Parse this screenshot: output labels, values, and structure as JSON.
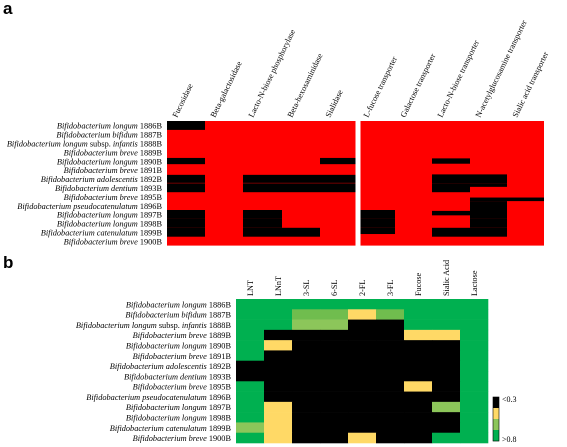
{
  "panels": {
    "a_letter": "a",
    "b_letter": "b"
  },
  "chart_data": [
    {
      "type": "heatmap",
      "panel": "a",
      "rows": [
        {
          "genus": "Bifidobacterium",
          "species": "longum",
          "subsp": "",
          "strain": "1886B"
        },
        {
          "genus": "Bifidobacterium",
          "species": "bifidum",
          "subsp": "",
          "strain": "1887B"
        },
        {
          "genus": "Bifidobacterium",
          "species": "longum",
          "subsp": "infantis",
          "strain": "1888B"
        },
        {
          "genus": "Bifidobacterium",
          "species": "breve",
          "subsp": "",
          "strain": "1889B"
        },
        {
          "genus": "Bifidobacterium",
          "species": "longum",
          "subsp": "",
          "strain": "1890B"
        },
        {
          "genus": "Bifidobacterium",
          "species": "breve",
          "subsp": "",
          "strain": "1891B"
        },
        {
          "genus": "Bifidobacterium",
          "species": "adolescentis",
          "subsp": "",
          "strain": "1892B"
        },
        {
          "genus": "Bifidobacterium",
          "species": "dentium",
          "subsp": "",
          "strain": "1893B"
        },
        {
          "genus": "Bifidobacterium",
          "species": "breve",
          "subsp": "",
          "strain": "1895B"
        },
        {
          "genus": "Bifidobacterium",
          "species": "pseudocatenulatum",
          "subsp": "",
          "strain": "1896B"
        },
        {
          "genus": "Bifidobacterium",
          "species": "longum",
          "subsp": "",
          "strain": "1897B"
        },
        {
          "genus": "Bifidobacterium",
          "species": "longum",
          "subsp": "",
          "strain": "1898B"
        },
        {
          "genus": "Bifidobacterium",
          "species": "catenulatum",
          "subsp": "",
          "strain": "1899B"
        },
        {
          "genus": "Bifidobacterium",
          "species": "breve",
          "subsp": "",
          "strain": "1900B"
        }
      ],
      "columns": [
        "Fucosidase",
        "Beta-galactosidase",
        "Lacto-N-biose phosphorylase",
        "Beta-hexosaminidase",
        "Sialidase",
        "L-fucose transporter",
        "Galactose transporter",
        "Lacto-N-biose transporter",
        "N-acetylglucosamine transporter",
        "Sialic acid transporter"
      ],
      "column_group_break_after": 5,
      "colors": {
        "present": "#ff0000",
        "absent": "#000000"
      },
      "segments": [
        [
          [
            0,
            1,
            0.0,
            1.0
          ]
        ],
        [],
        [],
        [],
        [
          [
            0,
            1,
            0.15,
            0.85
          ],
          [
            4,
            5,
            0.15,
            0.85
          ],
          [
            7,
            8,
            0.2,
            0.8
          ]
        ],
        [],
        [
          [
            0,
            1,
            0.05,
            0.95
          ],
          [
            2,
            5,
            0.05,
            0.95
          ],
          [
            7,
            9,
            0.0,
            1.0
          ]
        ],
        [
          [
            0,
            1,
            0.0,
            1.0
          ],
          [
            2,
            5,
            0.0,
            1.0
          ],
          [
            7,
            8,
            0.0,
            1.0
          ],
          [
            8,
            9,
            0.0,
            0.4
          ]
        ],
        [
          [
            8,
            10,
            0.6,
            1.0
          ]
        ],
        [
          [
            8,
            9,
            0.0,
            1.0
          ]
        ],
        [
          [
            0,
            1,
            0.0,
            1.0
          ],
          [
            2,
            3,
            0.0,
            1.0
          ],
          [
            5,
            6,
            0.0,
            1.0
          ],
          [
            7,
            8,
            0.1,
            0.6
          ],
          [
            8,
            9,
            0.0,
            1.0
          ]
        ],
        [
          [
            0,
            1,
            0.0,
            1.0
          ],
          [
            2,
            3,
            0.0,
            1.0
          ],
          [
            5,
            6,
            0.0,
            1.0
          ],
          [
            8,
            9,
            0.0,
            1.0
          ]
        ],
        [
          [
            0,
            1,
            0.0,
            1.0
          ],
          [
            2,
            4,
            0.0,
            1.0
          ],
          [
            5,
            6,
            0.0,
            0.7
          ],
          [
            7,
            9,
            0.0,
            1.0
          ]
        ],
        []
      ]
    },
    {
      "type": "heatmap",
      "panel": "b",
      "rows": [
        {
          "genus": "Bifidobacterium",
          "species": "longum",
          "subsp": "",
          "strain": "1886B"
        },
        {
          "genus": "Bifidobacterium",
          "species": "bifidum",
          "subsp": "",
          "strain": "1887B"
        },
        {
          "genus": "Bifidobacterium",
          "species": "longum",
          "subsp": "infantis",
          "strain": "1888B"
        },
        {
          "genus": "Bifidobacterium",
          "species": "breve",
          "subsp": "",
          "strain": "1889B"
        },
        {
          "genus": "Bifidobacterium",
          "species": "longum",
          "subsp": "",
          "strain": "1890B"
        },
        {
          "genus": "Bifidobacterium",
          "species": "breve",
          "subsp": "",
          "strain": "1891B"
        },
        {
          "genus": "Bifidobacterium",
          "species": "adolescentis",
          "subsp": "",
          "strain": "1892B"
        },
        {
          "genus": "Bifidobacterium",
          "species": "dentium",
          "subsp": "",
          "strain": "1893B"
        },
        {
          "genus": "Bifidobacterium",
          "species": "breve",
          "subsp": "",
          "strain": "1895B"
        },
        {
          "genus": "Bifidobacterium",
          "species": "pseudocatenulatum",
          "subsp": "",
          "strain": "1896B"
        },
        {
          "genus": "Bifidobacterium",
          "species": "longum",
          "subsp": "",
          "strain": "1897B"
        },
        {
          "genus": "Bifidobacterium",
          "species": "longum",
          "subsp": "",
          "strain": "1898B"
        },
        {
          "genus": "Bifidobacterium",
          "species": "catenulatum",
          "subsp": "",
          "strain": "1899B"
        },
        {
          "genus": "Bifidobacterium",
          "species": "breve",
          "subsp": "",
          "strain": "1900B"
        }
      ],
      "columns": [
        "LNT",
        "LNnT",
        "3-SL",
        "6-SL",
        "2-FL",
        "3-FL",
        "Fucose",
        "Sialic Acid",
        "Lactose"
      ],
      "legend": {
        "labels": [
          "<0.3",
          ">0.8"
        ],
        "colors": [
          "#000000",
          "#ffd966",
          "#8cc65a",
          "#00b050"
        ]
      },
      "cells": [
        [
          "G",
          "G",
          "G",
          "G",
          "G",
          "G",
          "G",
          "G",
          "G"
        ],
        [
          "G",
          "G",
          "M",
          "M",
          "Y",
          "M",
          "G",
          "G",
          "G"
        ],
        [
          "G",
          "G",
          "L",
          "L",
          "K",
          "K",
          "G",
          "G",
          "G"
        ],
        [
          "G",
          "K",
          "K",
          "K",
          "K",
          "K",
          "Y",
          "Y",
          "G"
        ],
        [
          "G",
          "Y",
          "K",
          "K",
          "K",
          "K",
          "K",
          "K",
          "G"
        ],
        [
          "G",
          "K",
          "K",
          "K",
          "K",
          "K",
          "K",
          "K",
          "G"
        ],
        [
          "K",
          "K",
          "K",
          "K",
          "K",
          "K",
          "K",
          "K",
          "G"
        ],
        [
          "K",
          "K",
          "K",
          "K",
          "K",
          "K",
          "K",
          "K",
          "G"
        ],
        [
          "G",
          "K",
          "K",
          "K",
          "K",
          "K",
          "Y",
          "K",
          "G"
        ],
        [
          "G",
          "K",
          "K",
          "K",
          "K",
          "K",
          "K",
          "K",
          "G"
        ],
        [
          "G",
          "Y",
          "K",
          "K",
          "K",
          "K",
          "K",
          "L",
          "G"
        ],
        [
          "G",
          "Y",
          "K",
          "K",
          "K",
          "K",
          "K",
          "K",
          "G"
        ],
        [
          "L",
          "Y",
          "K",
          "K",
          "K",
          "K",
          "K",
          "K",
          "G"
        ],
        [
          "G",
          "Y",
          "K",
          "K",
          "Y",
          "K",
          "K",
          "G",
          "G"
        ]
      ],
      "cell_colors": {
        "K": "#000000",
        "Y": "#ffd966",
        "L": "#8cc65a",
        "M": "#70bd4e",
        "G": "#00b050"
      }
    }
  ]
}
